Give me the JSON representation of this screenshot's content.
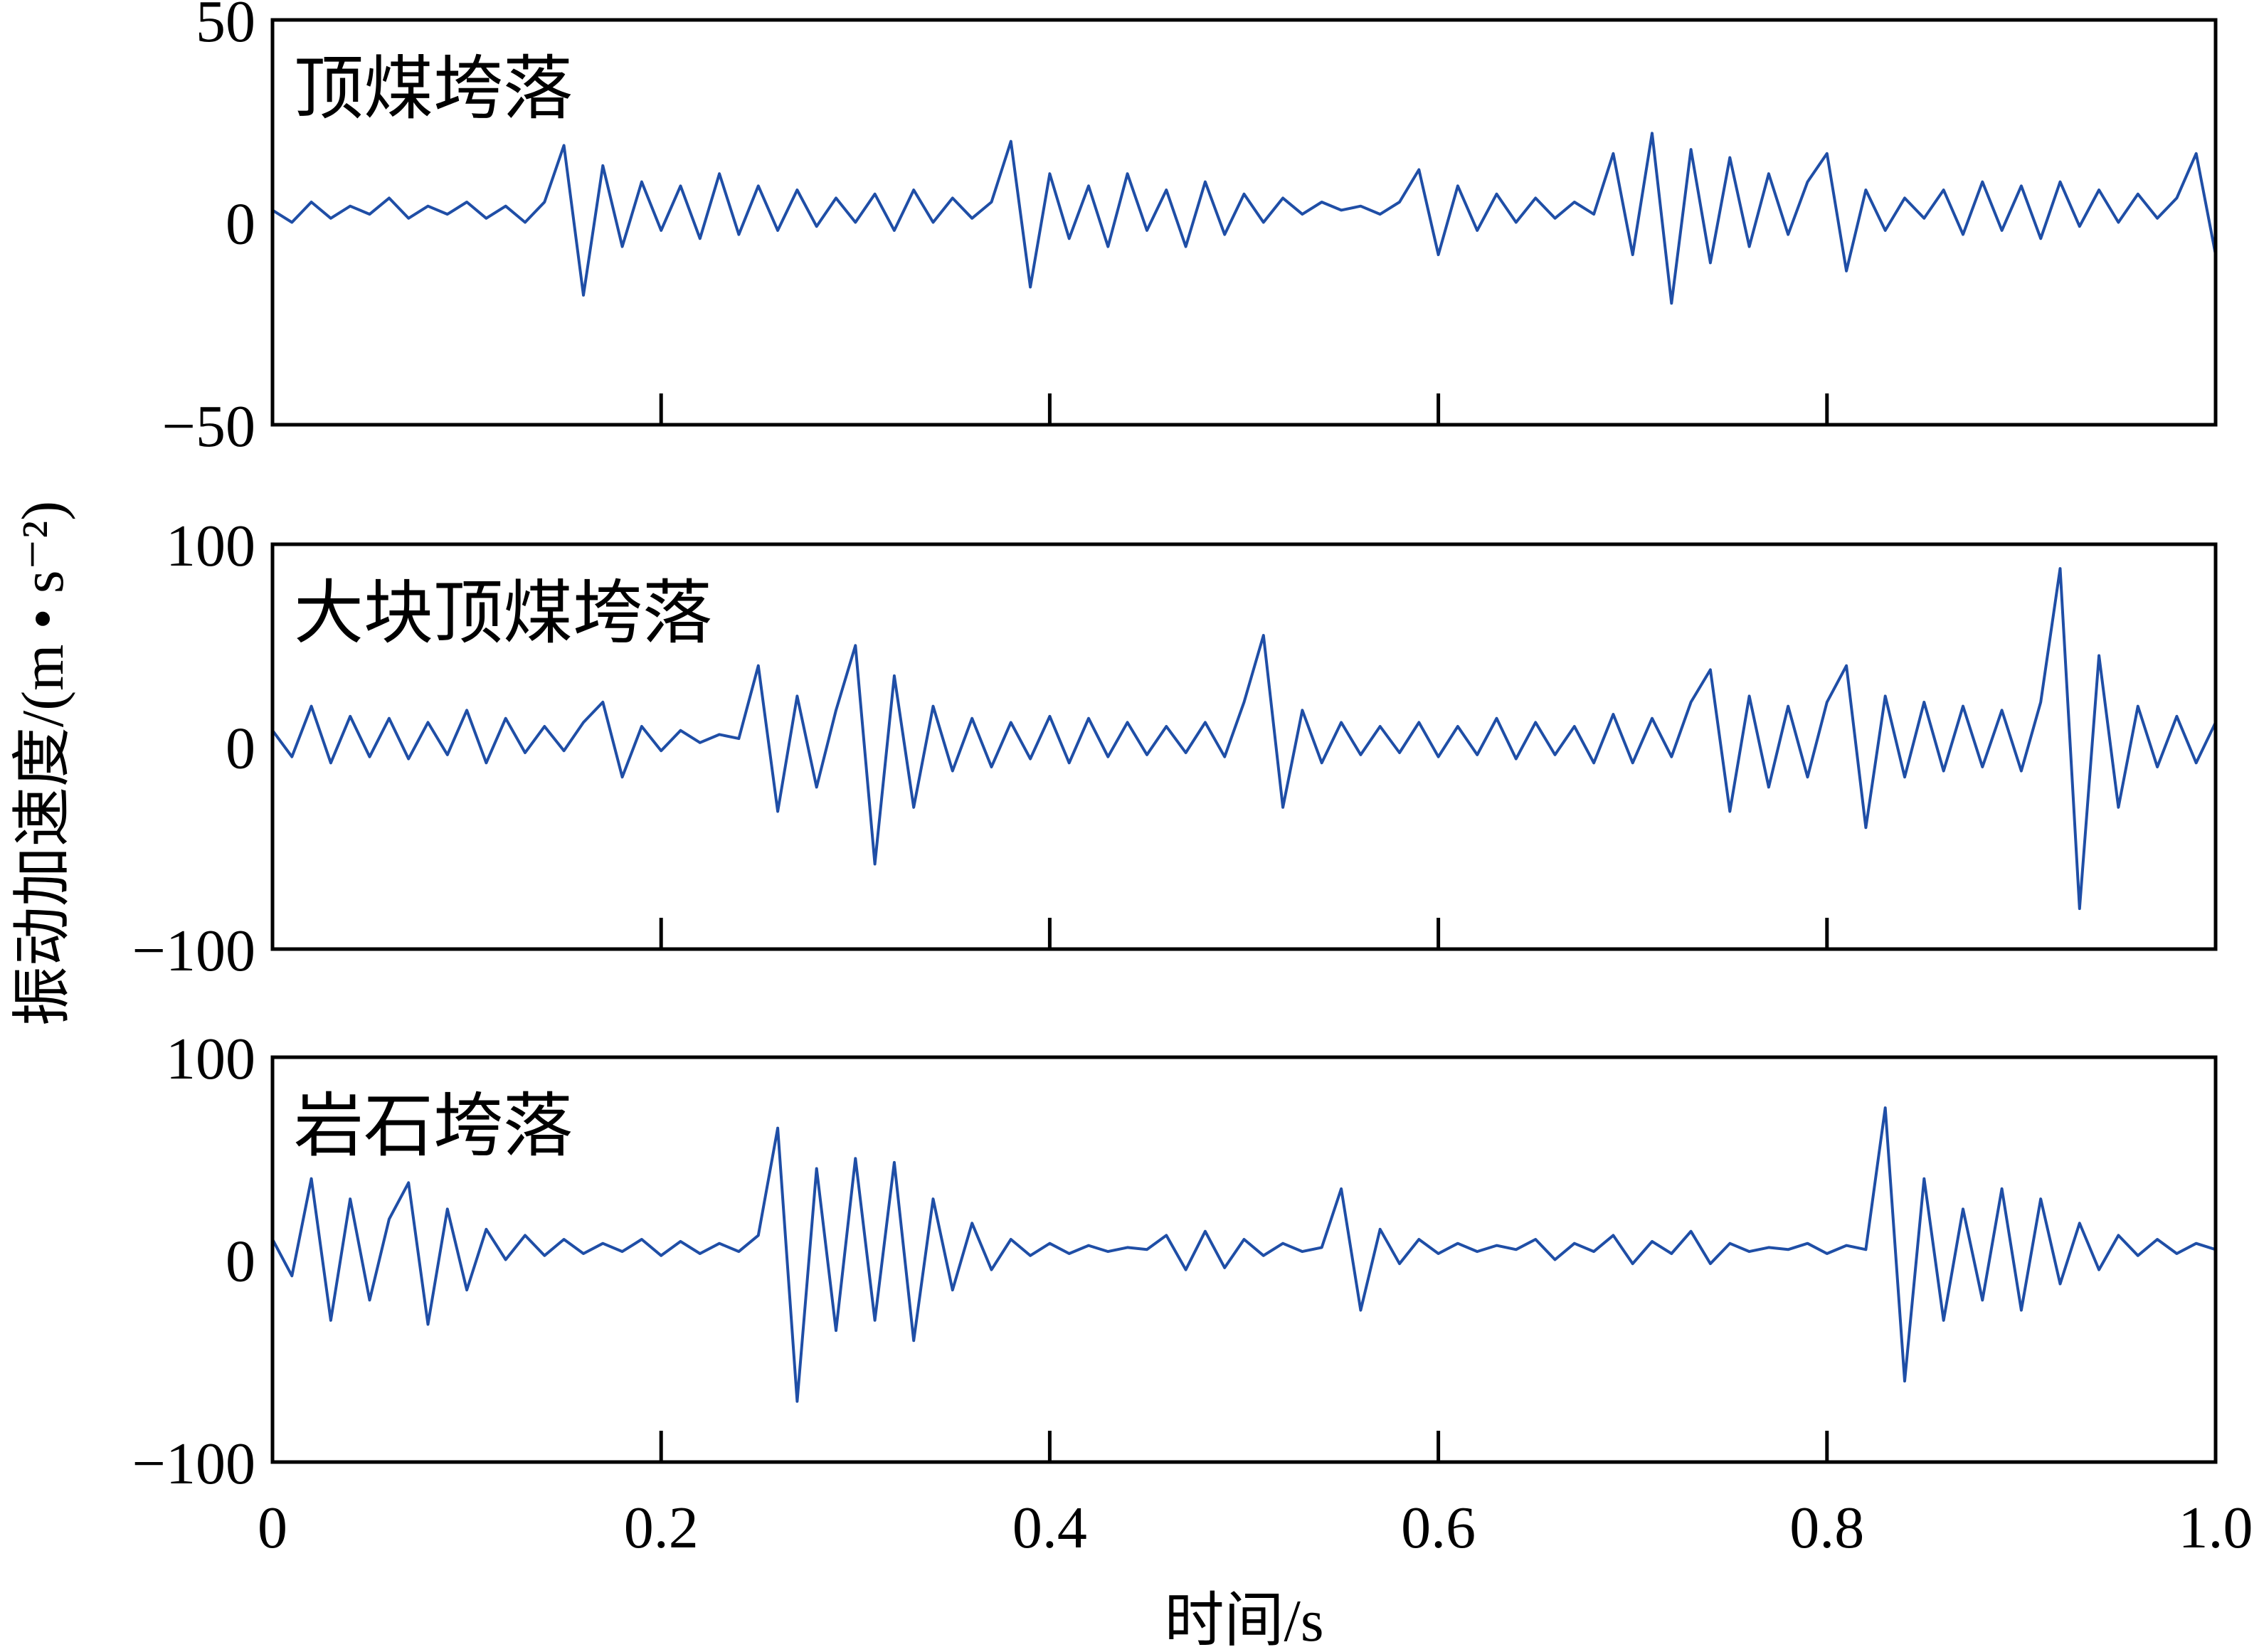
{
  "chart_data": [
    {
      "type": "line",
      "label": "顶煤垮落",
      "label_color": "#e0261f",
      "color": "#1f4ea6",
      "xlim": [
        0,
        1
      ],
      "xticks": [
        0,
        0.2,
        0.4,
        0.6,
        0.8,
        1
      ],
      "show_xtick_labels": false,
      "ylim": [
        -50,
        50
      ],
      "yticks": [
        {
          "value": -50,
          "label": "−50"
        },
        0,
        50
      ],
      "x": [
        0,
        0.01,
        0.02,
        0.03,
        0.04,
        0.05,
        0.06,
        0.07,
        0.08,
        0.09,
        0.1,
        0.11,
        0.12,
        0.13,
        0.14,
        0.15,
        0.16,
        0.17,
        0.18,
        0.19,
        0.2,
        0.21,
        0.22,
        0.23,
        0.24,
        0.25,
        0.26,
        0.27,
        0.28,
        0.29,
        0.3,
        0.31,
        0.32,
        0.33,
        0.34,
        0.35,
        0.36,
        0.37,
        0.38,
        0.39,
        0.4,
        0.41,
        0.42,
        0.43,
        0.44,
        0.45,
        0.46,
        0.47,
        0.48,
        0.49,
        0.5,
        0.51,
        0.52,
        0.53,
        0.54,
        0.55,
        0.56,
        0.57,
        0.58,
        0.59,
        0.6,
        0.61,
        0.62,
        0.63,
        0.64,
        0.65,
        0.66,
        0.67,
        0.68,
        0.69,
        0.7,
        0.71,
        0.72,
        0.73,
        0.74,
        0.75,
        0.76,
        0.77,
        0.78,
        0.79,
        0.8,
        0.81,
        0.82,
        0.83,
        0.84,
        0.85,
        0.86,
        0.87,
        0.88,
        0.89,
        0.9,
        0.91,
        0.92,
        0.93,
        0.94,
        0.95,
        0.96,
        0.97,
        0.98,
        0.99,
        1
      ],
      "values": [
        3,
        0,
        5,
        1,
        4,
        2,
        6,
        1,
        4,
        2,
        5,
        1,
        4,
        0,
        5,
        19,
        -18,
        14,
        -6,
        10,
        -2,
        9,
        -4,
        12,
        -3,
        9,
        -2,
        8,
        -1,
        6,
        0,
        7,
        -2,
        8,
        0,
        6,
        1,
        5,
        20,
        -16,
        12,
        -4,
        9,
        -6,
        12,
        -2,
        8,
        -6,
        10,
        -3,
        7,
        0,
        6,
        2,
        5,
        3,
        4,
        2,
        5,
        13,
        -8,
        9,
        -2,
        7,
        0,
        6,
        1,
        5,
        2,
        17,
        -8,
        22,
        -20,
        18,
        -10,
        16,
        -6,
        12,
        -3,
        10,
        17,
        -12,
        8,
        -2,
        6,
        1,
        8,
        -3,
        10,
        -2,
        9,
        -4,
        10,
        -1,
        8,
        0,
        7,
        1,
        6,
        17,
        -8
      ]
    },
    {
      "type": "line",
      "label": "大块顶煤垮落",
      "label_color": "#e0261f",
      "color": "#1f4ea6",
      "ylabel": "振动加速度/(m • s⁻²)",
      "xlim": [
        0,
        1
      ],
      "xticks": [
        0,
        0.2,
        0.4,
        0.6,
        0.8,
        1
      ],
      "show_xtick_labels": false,
      "ylim": [
        -100,
        100
      ],
      "yticks": [
        {
          "value": -100,
          "label": "−100"
        },
        0,
        100
      ],
      "x": [
        0,
        0.01,
        0.02,
        0.03,
        0.04,
        0.05,
        0.06,
        0.07,
        0.08,
        0.09,
        0.1,
        0.11,
        0.12,
        0.13,
        0.14,
        0.15,
        0.16,
        0.17,
        0.18,
        0.19,
        0.2,
        0.21,
        0.22,
        0.23,
        0.24,
        0.25,
        0.26,
        0.27,
        0.28,
        0.29,
        0.3,
        0.31,
        0.32,
        0.33,
        0.34,
        0.35,
        0.36,
        0.37,
        0.38,
        0.39,
        0.4,
        0.41,
        0.42,
        0.43,
        0.44,
        0.45,
        0.46,
        0.47,
        0.48,
        0.49,
        0.5,
        0.51,
        0.52,
        0.53,
        0.54,
        0.55,
        0.56,
        0.57,
        0.58,
        0.59,
        0.6,
        0.61,
        0.62,
        0.63,
        0.64,
        0.65,
        0.66,
        0.67,
        0.68,
        0.69,
        0.7,
        0.71,
        0.72,
        0.73,
        0.74,
        0.75,
        0.76,
        0.77,
        0.78,
        0.79,
        0.8,
        0.81,
        0.82,
        0.83,
        0.84,
        0.85,
        0.86,
        0.87,
        0.88,
        0.89,
        0.9,
        0.91,
        0.92,
        0.93,
        0.94,
        0.95,
        0.96,
        0.97,
        0.98,
        0.99,
        1
      ],
      "values": [
        8,
        -5,
        20,
        -8,
        15,
        -5,
        14,
        -6,
        12,
        -4,
        18,
        -8,
        14,
        -3,
        10,
        -2,
        12,
        22,
        -15,
        10,
        -2,
        8,
        2,
        6,
        4,
        40,
        -32,
        25,
        -20,
        18,
        50,
        -58,
        35,
        -30,
        20,
        -12,
        14,
        -10,
        12,
        -6,
        15,
        -8,
        14,
        -5,
        12,
        -4,
        10,
        -3,
        12,
        -5,
        22,
        55,
        -30,
        18,
        -8,
        12,
        -4,
        10,
        -3,
        12,
        -5,
        10,
        -4,
        14,
        -6,
        12,
        -4,
        10,
        -8,
        16,
        -8,
        14,
        -5,
        22,
        38,
        -32,
        25,
        -20,
        20,
        -15,
        22,
        40,
        -40,
        25,
        -15,
        22,
        -12,
        20,
        -10,
        18,
        -12,
        22,
        88,
        -80,
        45,
        -30,
        20,
        -10,
        15,
        -8,
        12
      ]
    },
    {
      "type": "line",
      "label": "岩石垮落",
      "label_color": "#e0261f",
      "color": "#1f4ea6",
      "xlabel": "时间/s",
      "xlim": [
        0,
        1
      ],
      "xticks": [
        0,
        0.2,
        0.4,
        0.6,
        0.8,
        {
          "value": 1,
          "label": "1.0"
        }
      ],
      "show_xtick_labels": true,
      "ylim": [
        -100,
        100
      ],
      "yticks": [
        {
          "value": -100,
          "label": "−100"
        },
        0,
        100
      ],
      "x": [
        0,
        0.01,
        0.02,
        0.03,
        0.04,
        0.05,
        0.06,
        0.07,
        0.08,
        0.09,
        0.1,
        0.11,
        0.12,
        0.13,
        0.14,
        0.15,
        0.16,
        0.17,
        0.18,
        0.19,
        0.2,
        0.21,
        0.22,
        0.23,
        0.24,
        0.25,
        0.26,
        0.27,
        0.28,
        0.29,
        0.3,
        0.31,
        0.32,
        0.33,
        0.34,
        0.35,
        0.36,
        0.37,
        0.38,
        0.39,
        0.4,
        0.41,
        0.42,
        0.43,
        0.44,
        0.45,
        0.46,
        0.47,
        0.48,
        0.49,
        0.5,
        0.51,
        0.52,
        0.53,
        0.54,
        0.55,
        0.56,
        0.57,
        0.58,
        0.59,
        0.6,
        0.61,
        0.62,
        0.63,
        0.64,
        0.65,
        0.66,
        0.67,
        0.68,
        0.69,
        0.7,
        0.71,
        0.72,
        0.73,
        0.74,
        0.75,
        0.76,
        0.77,
        0.78,
        0.79,
        0.8,
        0.81,
        0.82,
        0.83,
        0.84,
        0.85,
        0.86,
        0.87,
        0.88,
        0.89,
        0.9,
        0.91,
        0.92,
        0.93,
        0.94,
        0.95,
        0.96,
        0.97,
        0.98,
        0.99,
        1
      ],
      "values": [
        10,
        -8,
        40,
        -30,
        30,
        -20,
        20,
        38,
        -32,
        25,
        -15,
        15,
        0,
        12,
        2,
        10,
        3,
        8,
        4,
        10,
        2,
        9,
        3,
        8,
        4,
        12,
        65,
        -70,
        45,
        -35,
        50,
        -30,
        48,
        -40,
        30,
        -15,
        18,
        -5,
        10,
        2,
        8,
        3,
        7,
        4,
        6,
        5,
        12,
        -5,
        14,
        -4,
        10,
        2,
        8,
        4,
        6,
        35,
        -25,
        15,
        -2,
        10,
        3,
        8,
        4,
        7,
        5,
        10,
        0,
        8,
        4,
        12,
        -2,
        9,
        3,
        14,
        -2,
        8,
        4,
        6,
        5,
        8,
        3,
        7,
        5,
        75,
        -60,
        40,
        -30,
        25,
        -20,
        35,
        -25,
        30,
        -12,
        18,
        -5,
        12,
        2,
        10,
        3,
        8,
        5
      ]
    }
  ]
}
